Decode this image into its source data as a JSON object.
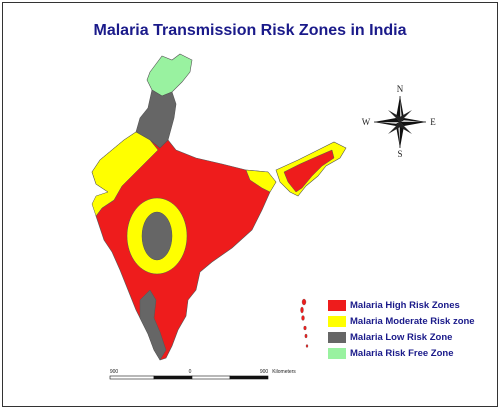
{
  "title": "Malaria Transmission Risk Zones in India",
  "compass": {
    "north": "N",
    "south": "S",
    "east": "E",
    "west": "W"
  },
  "legend": [
    {
      "label": "Malaria High Risk Zones",
      "color": "#ee1c1c"
    },
    {
      "label": "Malaria Moderate Risk zone",
      "color": "#ffff00"
    },
    {
      "label": "Malaria Low Risk Zone",
      "color": "#666666"
    },
    {
      "label": "Malaria Risk Free Zone",
      "color": "#99f2a0"
    }
  ],
  "scale_bar": {
    "left": "900",
    "center": "0",
    "right": "900",
    "unit": "Kilometers"
  }
}
